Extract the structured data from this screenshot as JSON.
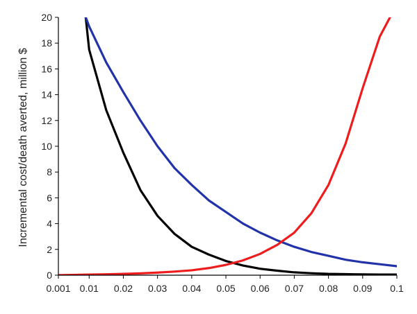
{
  "chart_data": {
    "type": "line",
    "title": "",
    "xlabel": "",
    "ylabel": "Incremental cost/death  averted, million $",
    "xlim": [
      0.001,
      0.1
    ],
    "ylim": [
      0,
      20
    ],
    "x_tick_labels": [
      "0.001",
      "0.01",
      "0.02",
      "0.03",
      "0.04",
      "0.05",
      "0.06",
      "0.07",
      "0.08",
      "0.09",
      "0.1"
    ],
    "x_tick_values": [
      0.001,
      0.01,
      0.02,
      0.03,
      0.04,
      0.05,
      0.06,
      0.07,
      0.08,
      0.09,
      0.1
    ],
    "y_ticks": [
      0,
      2,
      4,
      6,
      8,
      10,
      12,
      14,
      16,
      18,
      20
    ],
    "grid": false,
    "legend": "none",
    "series": [
      {
        "color": "#000000",
        "x": [
          0.009,
          0.01,
          0.015,
          0.02,
          0.025,
          0.03,
          0.035,
          0.04,
          0.045,
          0.05,
          0.055,
          0.06,
          0.065,
          0.07,
          0.075,
          0.08,
          0.085,
          0.09,
          0.095,
          0.1
        ],
        "y": [
          20.0,
          17.5,
          12.8,
          9.5,
          6.6,
          4.6,
          3.2,
          2.2,
          1.6,
          1.1,
          0.75,
          0.5,
          0.35,
          0.22,
          0.15,
          0.1,
          0.08,
          0.06,
          0.05,
          0.05
        ]
      },
      {
        "color": "#2233aa",
        "x": [
          0.009,
          0.01,
          0.015,
          0.02,
          0.025,
          0.03,
          0.035,
          0.04,
          0.045,
          0.05,
          0.055,
          0.06,
          0.065,
          0.07,
          0.075,
          0.08,
          0.085,
          0.09,
          0.095,
          0.1
        ],
        "y": [
          20.0,
          19.3,
          16.5,
          14.2,
          12.0,
          10.0,
          8.3,
          7.0,
          5.8,
          4.9,
          4.0,
          3.3,
          2.7,
          2.2,
          1.8,
          1.5,
          1.2,
          1.0,
          0.85,
          0.7
        ]
      },
      {
        "color": "#ee1c1c",
        "x": [
          0.001,
          0.005,
          0.01,
          0.015,
          0.02,
          0.025,
          0.03,
          0.035,
          0.04,
          0.045,
          0.05,
          0.055,
          0.06,
          0.065,
          0.07,
          0.075,
          0.08,
          0.085,
          0.09,
          0.095,
          0.098
        ],
        "y": [
          0.0,
          0.02,
          0.05,
          0.07,
          0.1,
          0.14,
          0.2,
          0.28,
          0.38,
          0.55,
          0.8,
          1.15,
          1.65,
          2.35,
          3.3,
          4.8,
          7.0,
          10.2,
          14.5,
          18.5,
          20.0
        ]
      }
    ]
  }
}
